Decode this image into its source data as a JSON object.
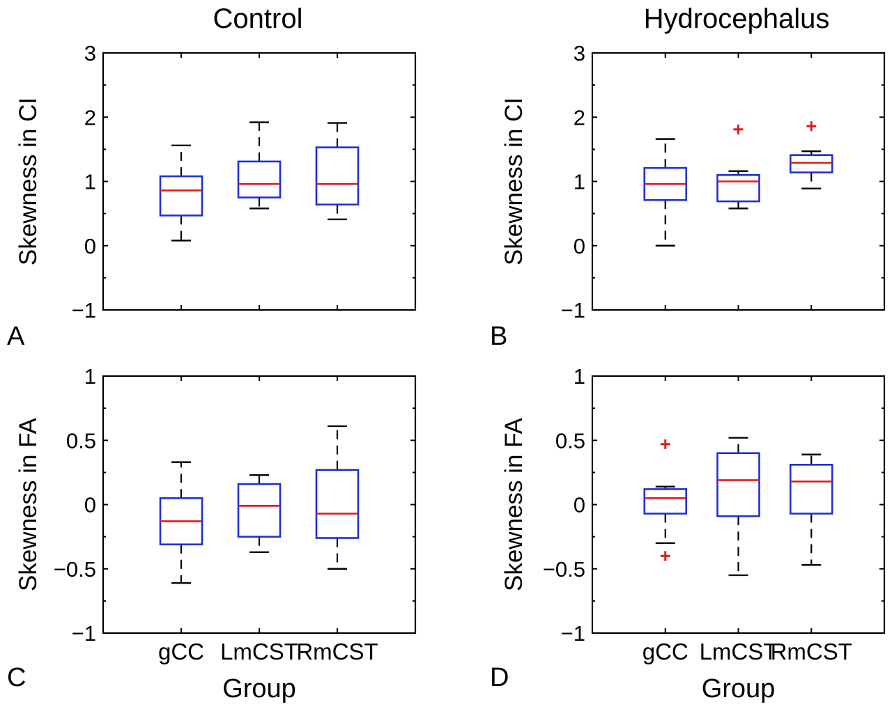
{
  "col_titles": [
    "Control",
    "Hydrocephalus"
  ],
  "chart_data": [
    {
      "type": "box",
      "panel_label": "A",
      "title": "Control",
      "ylabel": "Skewness in CI",
      "xlabel": "",
      "categories": [
        "gCC",
        "LmCST",
        "RmCST"
      ],
      "show_xticklabels": false,
      "ylim": [
        -1,
        3
      ],
      "yticks": [
        -1,
        0,
        1,
        2,
        3
      ],
      "ytick_labels": [
        "−1",
        "0",
        "1",
        "2",
        "3"
      ],
      "boxes": [
        {
          "whisker_low": 0.08,
          "q1": 0.47,
          "median": 0.86,
          "q3": 1.08,
          "whisker_high": 1.56,
          "outliers": []
        },
        {
          "whisker_low": 0.58,
          "q1": 0.75,
          "median": 0.96,
          "q3": 1.31,
          "whisker_high": 1.92,
          "outliers": []
        },
        {
          "whisker_low": 0.41,
          "q1": 0.64,
          "median": 0.96,
          "q3": 1.53,
          "whisker_high": 1.91,
          "outliers": []
        }
      ]
    },
    {
      "type": "box",
      "panel_label": "B",
      "title": "Hydrocephalus",
      "ylabel": "Skewness in CI",
      "xlabel": "",
      "categories": [
        "gCC",
        "LmCST",
        "RmCST"
      ],
      "show_xticklabels": false,
      "ylim": [
        -1,
        3
      ],
      "yticks": [
        -1,
        0,
        1,
        2,
        3
      ],
      "ytick_labels": [
        "−1",
        "0",
        "1",
        "2",
        "3"
      ],
      "boxes": [
        {
          "whisker_low": 0.0,
          "q1": 0.71,
          "median": 0.96,
          "q3": 1.21,
          "whisker_high": 1.66,
          "outliers": []
        },
        {
          "whisker_low": 0.58,
          "q1": 0.69,
          "median": 1.0,
          "q3": 1.1,
          "whisker_high": 1.16,
          "outliers": [
            1.81
          ]
        },
        {
          "whisker_low": 0.89,
          "q1": 1.14,
          "median": 1.29,
          "q3": 1.41,
          "whisker_high": 1.47,
          "outliers": [
            1.86
          ]
        }
      ]
    },
    {
      "type": "box",
      "panel_label": "C",
      "title": "",
      "ylabel": "Skewness in FA",
      "xlabel": "Group",
      "categories": [
        "gCC",
        "LmCST",
        "RmCST"
      ],
      "show_xticklabels": true,
      "ylim": [
        -1,
        1
      ],
      "yticks": [
        -1,
        -0.5,
        0,
        0.5,
        1
      ],
      "ytick_labels": [
        "−1",
        "−0.5",
        "0",
        "0.5",
        "1"
      ],
      "boxes": [
        {
          "whisker_low": -0.61,
          "q1": -0.31,
          "median": -0.13,
          "q3": 0.05,
          "whisker_high": 0.33,
          "outliers": []
        },
        {
          "whisker_low": -0.37,
          "q1": -0.25,
          "median": -0.01,
          "q3": 0.16,
          "whisker_high": 0.23,
          "outliers": []
        },
        {
          "whisker_low": -0.5,
          "q1": -0.26,
          "median": -0.07,
          "q3": 0.27,
          "whisker_high": 0.61,
          "outliers": []
        }
      ]
    },
    {
      "type": "box",
      "panel_label": "D",
      "title": "",
      "ylabel": "Skewness in FA",
      "xlabel": "Group",
      "categories": [
        "gCC",
        "LmCST",
        "RmCST"
      ],
      "show_xticklabels": true,
      "ylim": [
        -1,
        1
      ],
      "yticks": [
        -1,
        -0.5,
        0,
        0.5,
        1
      ],
      "ytick_labels": [
        "−1",
        "−0.5",
        "0",
        "0.5",
        "1"
      ],
      "boxes": [
        {
          "whisker_low": -0.3,
          "q1": -0.07,
          "median": 0.05,
          "q3": 0.12,
          "whisker_high": 0.14,
          "outliers": [
            0.47,
            -0.4
          ]
        },
        {
          "whisker_low": -0.55,
          "q1": -0.09,
          "median": 0.19,
          "q3": 0.4,
          "whisker_high": 0.52,
          "outliers": []
        },
        {
          "whisker_low": -0.47,
          "q1": -0.07,
          "median": 0.18,
          "q3": 0.31,
          "whisker_high": 0.39,
          "outliers": []
        }
      ]
    }
  ]
}
